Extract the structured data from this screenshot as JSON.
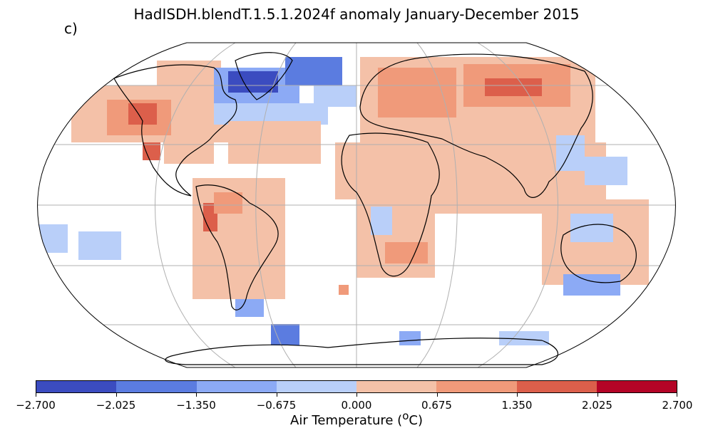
{
  "chart_data": {
    "type": "heatmap",
    "title": "HadISDH.blendT.1.5.1.2024f anomaly January-December 2015",
    "panel_label": "c)",
    "projection": "Robinson, global",
    "colorbar": {
      "label_prefix": "Air Temperature (",
      "label_super": "o",
      "label_suffix": "C)",
      "ticks": [
        -2.7,
        -2.025,
        -1.35,
        -0.675,
        0.0,
        0.675,
        1.35,
        2.025,
        2.7
      ],
      "tick_labels": [
        "−2.700",
        "−2.025",
        "−1.350",
        "−0.675",
        "0.000",
        "0.675",
        "1.350",
        "2.025",
        "2.700"
      ],
      "bin_colors": [
        "#3b4cc0",
        "#5b7ce0",
        "#8caaf5",
        "#b9cff9",
        "#f4c1a8",
        "#f09a7a",
        "#dc5f4b",
        "#b40426"
      ]
    },
    "regional_anomalies_estimated": [
      {
        "region": "Western North America",
        "bin": 1.35
      },
      {
        "region": "Eastern Canada / Greenland",
        "bin": -2.025
      },
      {
        "region": "North Atlantic",
        "bin": -0.675
      },
      {
        "region": "Europe",
        "bin": 0.675
      },
      {
        "region": "Northern Asia",
        "bin": 1.35
      },
      {
        "region": "South Asia",
        "bin": 0.675
      },
      {
        "region": "Africa",
        "bin": 0.675
      },
      {
        "region": "South America",
        "bin": 0.675
      },
      {
        "region": "Western South America coast",
        "bin": 2.025
      },
      {
        "region": "Australia",
        "bin": 0.675
      },
      {
        "region": "South Pacific",
        "bin": -0.675
      },
      {
        "region": "Southern Ocean / Antarctic coast",
        "bin": -1.35
      }
    ]
  }
}
